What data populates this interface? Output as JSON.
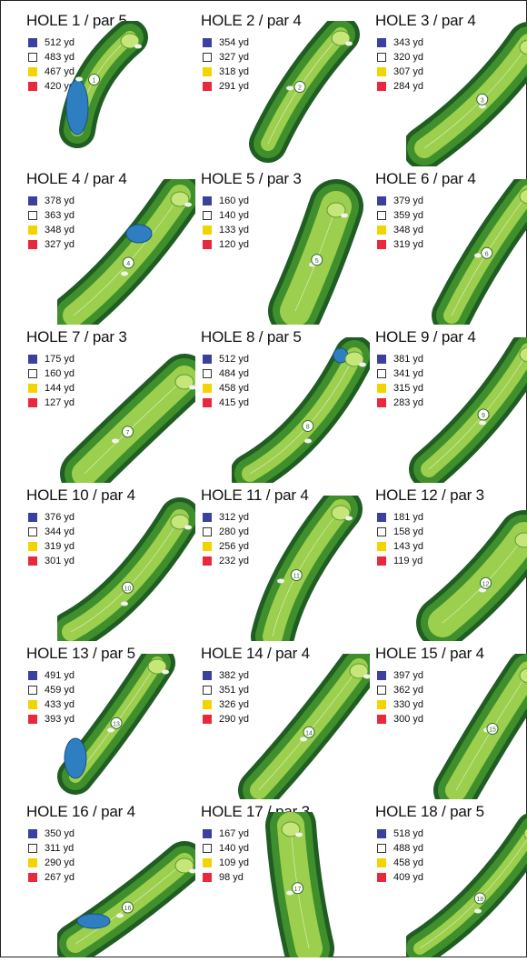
{
  "tee_colors": {
    "blue": "#3b3f9e",
    "white": "#ffffff",
    "yellow": "#f2d400",
    "red": "#e8283c"
  },
  "holes": [
    {
      "title": "HOLE 1 / par 5",
      "number": "1",
      "yards": [
        "512 yd",
        "483 yd",
        "467 yd",
        "420 yd"
      ]
    },
    {
      "title": "HOLE 2 / par 4",
      "number": "2",
      "yards": [
        "354 yd",
        "327 yd",
        "318 yd",
        "291 yd"
      ]
    },
    {
      "title": "HOLE 3 / par 4",
      "number": "3",
      "yards": [
        "343 yd",
        "320 yd",
        "307 yd",
        "284 yd"
      ]
    },
    {
      "title": "HOLE 4 / par 4",
      "number": "4",
      "yards": [
        "378 yd",
        "363 yd",
        "348 yd",
        "327 yd"
      ]
    },
    {
      "title": "HOLE 5 / par 3",
      "number": "5",
      "yards": [
        "160 yd",
        "140 yd",
        "133 yd",
        "120 yd"
      ]
    },
    {
      "title": "HOLE 6 / par 4",
      "number": "6",
      "yards": [
        "379 yd",
        "359 yd",
        "348 yd",
        "319 yd"
      ]
    },
    {
      "title": "HOLE 7 / par 3",
      "number": "7",
      "yards": [
        "175 yd",
        "160 yd",
        "144 yd",
        "127 yd"
      ]
    },
    {
      "title": "HOLE 8 / par 5",
      "number": "8",
      "yards": [
        "512 yd",
        "484 yd",
        "458 yd",
        "415 yd"
      ]
    },
    {
      "title": "HOLE 9 / par 4",
      "number": "9",
      "yards": [
        "381 yd",
        "341 yd",
        "315 yd",
        "283 yd"
      ]
    },
    {
      "title": "HOLE 10 / par 4",
      "number": "10",
      "yards": [
        "376 yd",
        "344 yd",
        "319 yd",
        "301 yd"
      ]
    },
    {
      "title": "HOLE 11 / par 4",
      "number": "11",
      "yards": [
        "312 yd",
        "280 yd",
        "256 yd",
        "232 yd"
      ]
    },
    {
      "title": "HOLE 12 / par 3",
      "number": "12",
      "yards": [
        "181 yd",
        "158 yd",
        "143 yd",
        "119 yd"
      ]
    },
    {
      "title": "HOLE 13 / par 5",
      "number": "13",
      "yards": [
        "491 yd",
        "459 yd",
        "433 yd",
        "393 yd"
      ]
    },
    {
      "title": "HOLE 14 / par 4",
      "number": "14",
      "yards": [
        "382 yd",
        "351 yd",
        "326 yd",
        "290 yd"
      ]
    },
    {
      "title": "HOLE 15 / par 4",
      "number": "15",
      "yards": [
        "397 yd",
        "362 yd",
        "330 yd",
        "300 yd"
      ]
    },
    {
      "title": "HOLE 16 / par 4",
      "number": "16",
      "yards": [
        "350 yd",
        "311 yd",
        "290 yd",
        "267 yd"
      ]
    },
    {
      "title": "HOLE 17 / par 3",
      "number": "17",
      "yards": [
        "167 yd",
        "140 yd",
        "109 yd",
        "98 yd"
      ]
    },
    {
      "title": "HOLE 18 / par 5",
      "number": "18",
      "yards": [
        "518 yd",
        "488 yd",
        "458 yd",
        "409 yd"
      ]
    }
  ]
}
